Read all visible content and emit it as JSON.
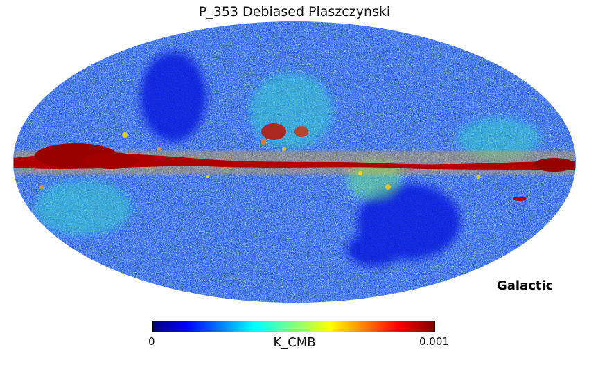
{
  "title": "P_353 Debiased Plaszczynski",
  "coordinate_frame": "Galactic",
  "colorbar": {
    "min_label": "0",
    "max_label": "0.001",
    "unit": "K_CMB",
    "colormap": "jet",
    "colors": [
      "#00007f",
      "#0000ff",
      "#007fff",
      "#00ffff",
      "#7fff7f",
      "#ffff00",
      "#ff7f00",
      "#ff0000",
      "#7f0000"
    ]
  },
  "projection": "mollweide"
}
